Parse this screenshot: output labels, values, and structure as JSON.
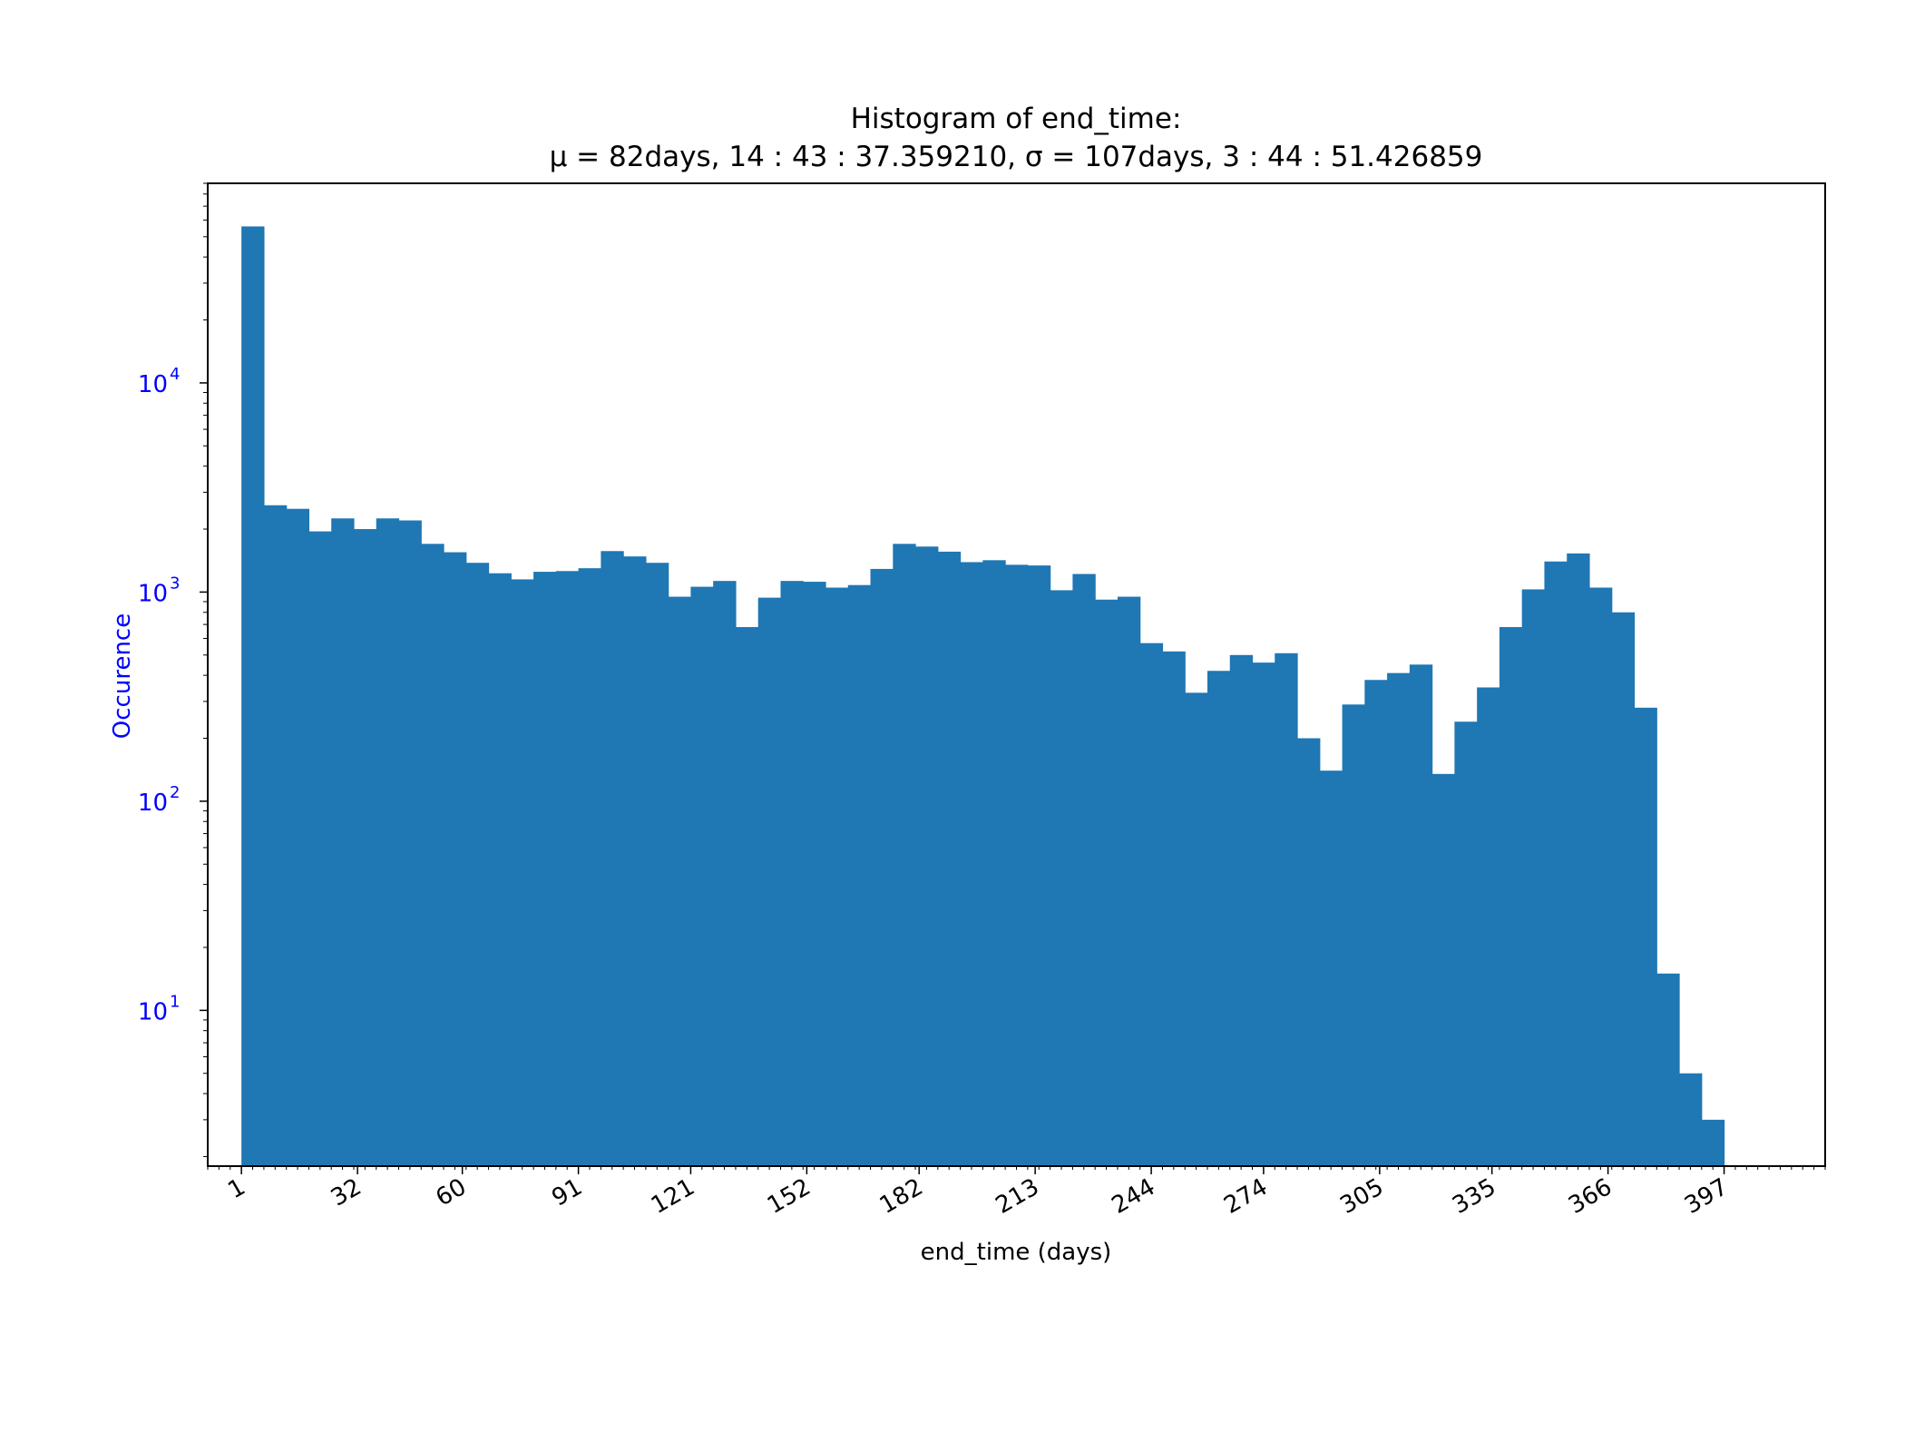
{
  "chart_data": {
    "type": "bar",
    "title": "Histogram of end_time:",
    "subtitle": "μ = 82days, 14 : 43 : 37.359210, σ = 107days, 3 : 44 : 51.426859",
    "xlabel": "end_time (days)",
    "ylabel": "Occurence",
    "yscale": "log",
    "xlim": [
      -8,
      424
    ],
    "ylim": [
      1.8,
      90000
    ],
    "x_ticks": [
      1,
      32,
      60,
      91,
      121,
      152,
      182,
      213,
      244,
      274,
      305,
      335,
      366,
      397
    ],
    "y_ticks": [
      10,
      100,
      1000,
      10000
    ],
    "y_tick_labels": [
      "10",
      "10",
      "10",
      "10"
    ],
    "y_tick_exponents": [
      "1",
      "2",
      "3",
      "4"
    ],
    "bins_start": 1,
    "bin_width": 6,
    "values": [
      56000,
      2600,
      2500,
      1950,
      2250,
      2000,
      2250,
      2200,
      1700,
      1550,
      1380,
      1230,
      1150,
      1250,
      1260,
      1300,
      1570,
      1480,
      1380,
      950,
      1060,
      1130,
      680,
      940,
      1130,
      1120,
      1050,
      1080,
      1290,
      1700,
      1650,
      1560,
      1390,
      1420,
      1350,
      1340,
      1020,
      1220,
      920,
      950,
      570,
      520,
      330,
      420,
      500,
      460,
      510,
      200,
      140,
      290,
      380,
      410,
      450,
      135,
      240,
      350,
      680,
      1030,
      1400,
      1530,
      1050,
      800,
      280,
      15,
      5,
      3
    ],
    "bar_color": "#1f77b4",
    "ylabel_color": "#0000ff",
    "ytick_color": "#0000ff",
    "grid": false
  }
}
